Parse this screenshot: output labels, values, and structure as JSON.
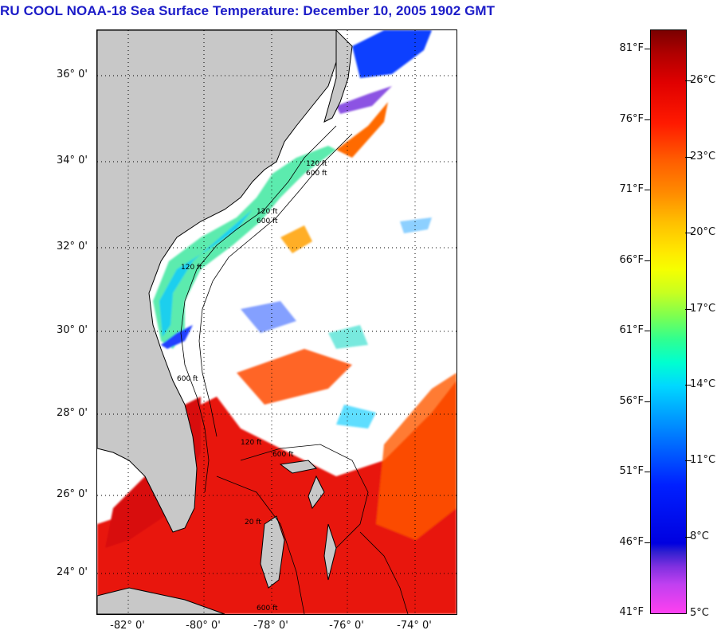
{
  "title": "RU COOL  NOAA-18  Sea Surface Temperature:  December 10, 2005 1902 GMT",
  "map": {
    "lat_labels": [
      "36° 0'",
      "34° 0'",
      "32° 0'",
      "30° 0'",
      "28° 0'",
      "26° 0'",
      "24° 0'"
    ],
    "lon_labels": [
      "-82° 0'",
      "-80° 0'",
      "-78° 0'",
      "-76° 0'",
      "-74° 0'"
    ],
    "contour_labels": [
      "120 ft",
      "600 ft",
      "120 ft",
      "600 ft",
      "120 ft",
      "600 ft",
      "120 ft",
      "600 ft",
      "20 ft",
      "600 ft"
    ],
    "land_color": "#c8c8c8",
    "no_data_color": "#ffffff"
  },
  "colorbar": {
    "fahrenheit_labels": [
      "81°F",
      "76°F",
      "71°F",
      "66°F",
      "61°F",
      "56°F",
      "51°F",
      "46°F",
      "41°F"
    ],
    "celsius_labels": [
      "26°C",
      "23°C",
      "20°C",
      "17°C",
      "14°C",
      "11°C",
      "8°C",
      "5°C"
    ],
    "top_color": "#7a0000",
    "bottom_color": "#ff40f0"
  }
}
